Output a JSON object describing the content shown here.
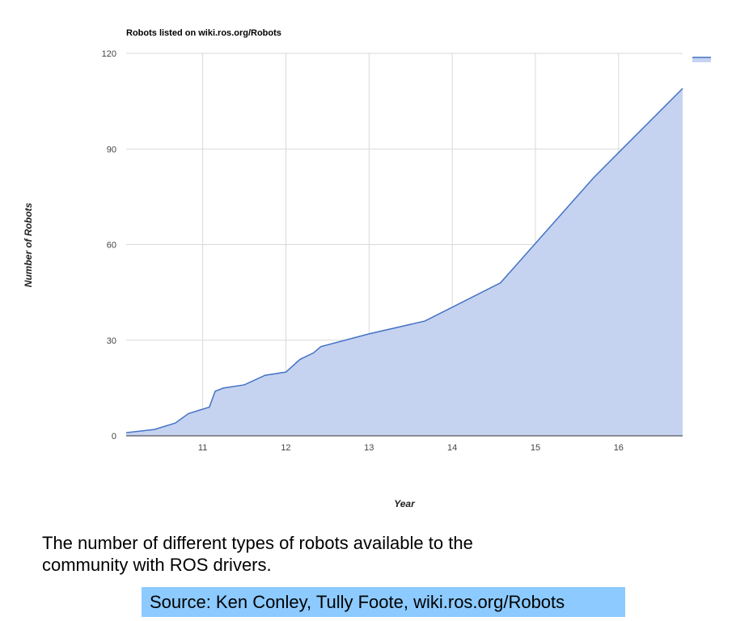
{
  "chart_data": {
    "type": "area",
    "title": "Robots listed on wiki.ros.org/Robots",
    "xlabel": "Year",
    "ylabel": "Number of Robots",
    "xlim": [
      10.08,
      16.77
    ],
    "ylim": [
      0,
      120
    ],
    "x_ticks": [
      11,
      12,
      13,
      14,
      15,
      16
    ],
    "y_ticks": [
      0,
      30,
      60,
      90,
      120
    ],
    "grid": true,
    "legend": "top-right",
    "color": "#4472c4",
    "fill_color": "#c5d3f1",
    "series": [
      {
        "x": [
          10.08,
          10.42,
          10.67,
          10.83,
          11.08,
          11.15,
          11.25,
          11.5,
          11.75,
          12.0,
          12.17,
          12.33,
          12.42,
          13.0,
          13.67,
          14.58,
          15.7,
          16.77
        ],
        "y": [
          1,
          2,
          4,
          7,
          9,
          14,
          15,
          16,
          19,
          20,
          24,
          26,
          28,
          32,
          36,
          48,
          81,
          109
        ]
      }
    ]
  },
  "caption": {
    "line1": "The number of different types of robots available to the",
    "line2": "community with ROS drivers."
  },
  "source": "Source: Ken Conley, Tully Foote, wiki.ros.org/Robots"
}
